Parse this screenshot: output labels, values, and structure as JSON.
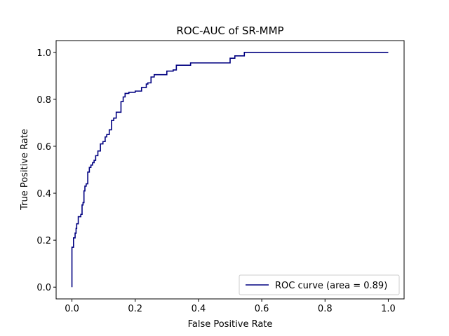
{
  "chart_data": {
    "type": "line",
    "title": "ROC-AUC of SR-MMP",
    "xlabel": "False Positive Rate",
    "ylabel": "True Positive Rate",
    "xlim": [
      -0.05,
      1.05
    ],
    "ylim": [
      -0.05,
      1.05
    ],
    "xticks": [
      0.0,
      0.2,
      0.4,
      0.6,
      0.8,
      1.0
    ],
    "yticks": [
      0.0,
      0.2,
      0.4,
      0.6,
      0.8,
      1.0
    ],
    "xtick_labels": [
      "0.0",
      "0.2",
      "0.4",
      "0.6",
      "0.8",
      "1.0"
    ],
    "ytick_labels": [
      "0.0",
      "0.2",
      "0.4",
      "0.6",
      "0.8",
      "1.0"
    ],
    "grid": false,
    "legend_position": "lower-right",
    "series": [
      {
        "name": "ROC curve (area = 0.89)",
        "color": "#000080",
        "step": true,
        "x": [
          0.0,
          0.0,
          0.005,
          0.01,
          0.013,
          0.015,
          0.02,
          0.028,
          0.032,
          0.035,
          0.038,
          0.041,
          0.045,
          0.05,
          0.055,
          0.06,
          0.065,
          0.07,
          0.075,
          0.082,
          0.09,
          0.098,
          0.105,
          0.11,
          0.118,
          0.125,
          0.132,
          0.14,
          0.155,
          0.162,
          0.168,
          0.18,
          0.2,
          0.22,
          0.235,
          0.24,
          0.25,
          0.26,
          0.3,
          0.32,
          0.33,
          0.375,
          0.5,
          0.515,
          0.525,
          0.545,
          1.0
        ],
        "y": [
          0.0,
          0.17,
          0.21,
          0.23,
          0.25,
          0.27,
          0.3,
          0.31,
          0.35,
          0.36,
          0.41,
          0.43,
          0.44,
          0.49,
          0.51,
          0.52,
          0.53,
          0.54,
          0.56,
          0.58,
          0.61,
          0.62,
          0.64,
          0.65,
          0.67,
          0.71,
          0.72,
          0.745,
          0.79,
          0.81,
          0.825,
          0.83,
          0.835,
          0.85,
          0.865,
          0.87,
          0.895,
          0.905,
          0.92,
          0.925,
          0.945,
          0.955,
          0.975,
          0.985,
          0.985,
          1.0,
          1.0
        ]
      }
    ]
  }
}
